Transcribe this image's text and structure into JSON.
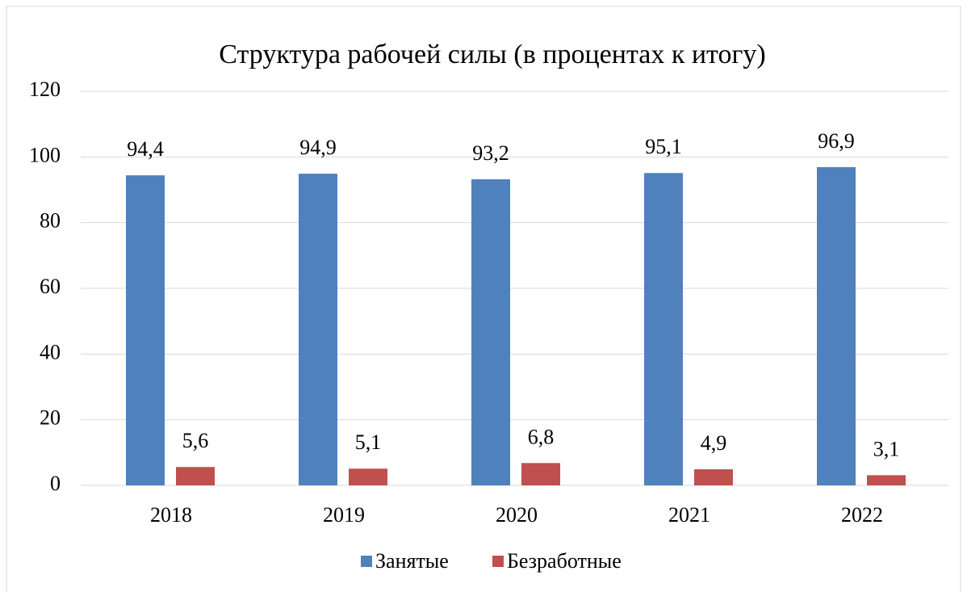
{
  "chart_data": {
    "type": "bar",
    "title": "Структура рабочей силы (в процентах к итогу)",
    "categories": [
      "2018",
      "2019",
      "2020",
      "2021",
      "2022"
    ],
    "series": [
      {
        "name": "Занятые",
        "color": "#4f81bd",
        "values": [
          94.4,
          94.9,
          93.2,
          95.1,
          96.9
        ],
        "value_labels": [
          "94,4",
          "94,9",
          "93,2",
          "95,1",
          "96,9"
        ]
      },
      {
        "name": "Безработные",
        "color": "#c0504d",
        "values": [
          5.6,
          5.1,
          6.8,
          4.9,
          3.1
        ],
        "value_labels": [
          "5,6",
          "5,1",
          "6,8",
          "4,9",
          "3,1"
        ]
      }
    ],
    "ylim": [
      0,
      120
    ],
    "yticks": [
      0,
      20,
      40,
      60,
      80,
      100,
      120
    ],
    "grid": true,
    "legend": "bottom"
  }
}
